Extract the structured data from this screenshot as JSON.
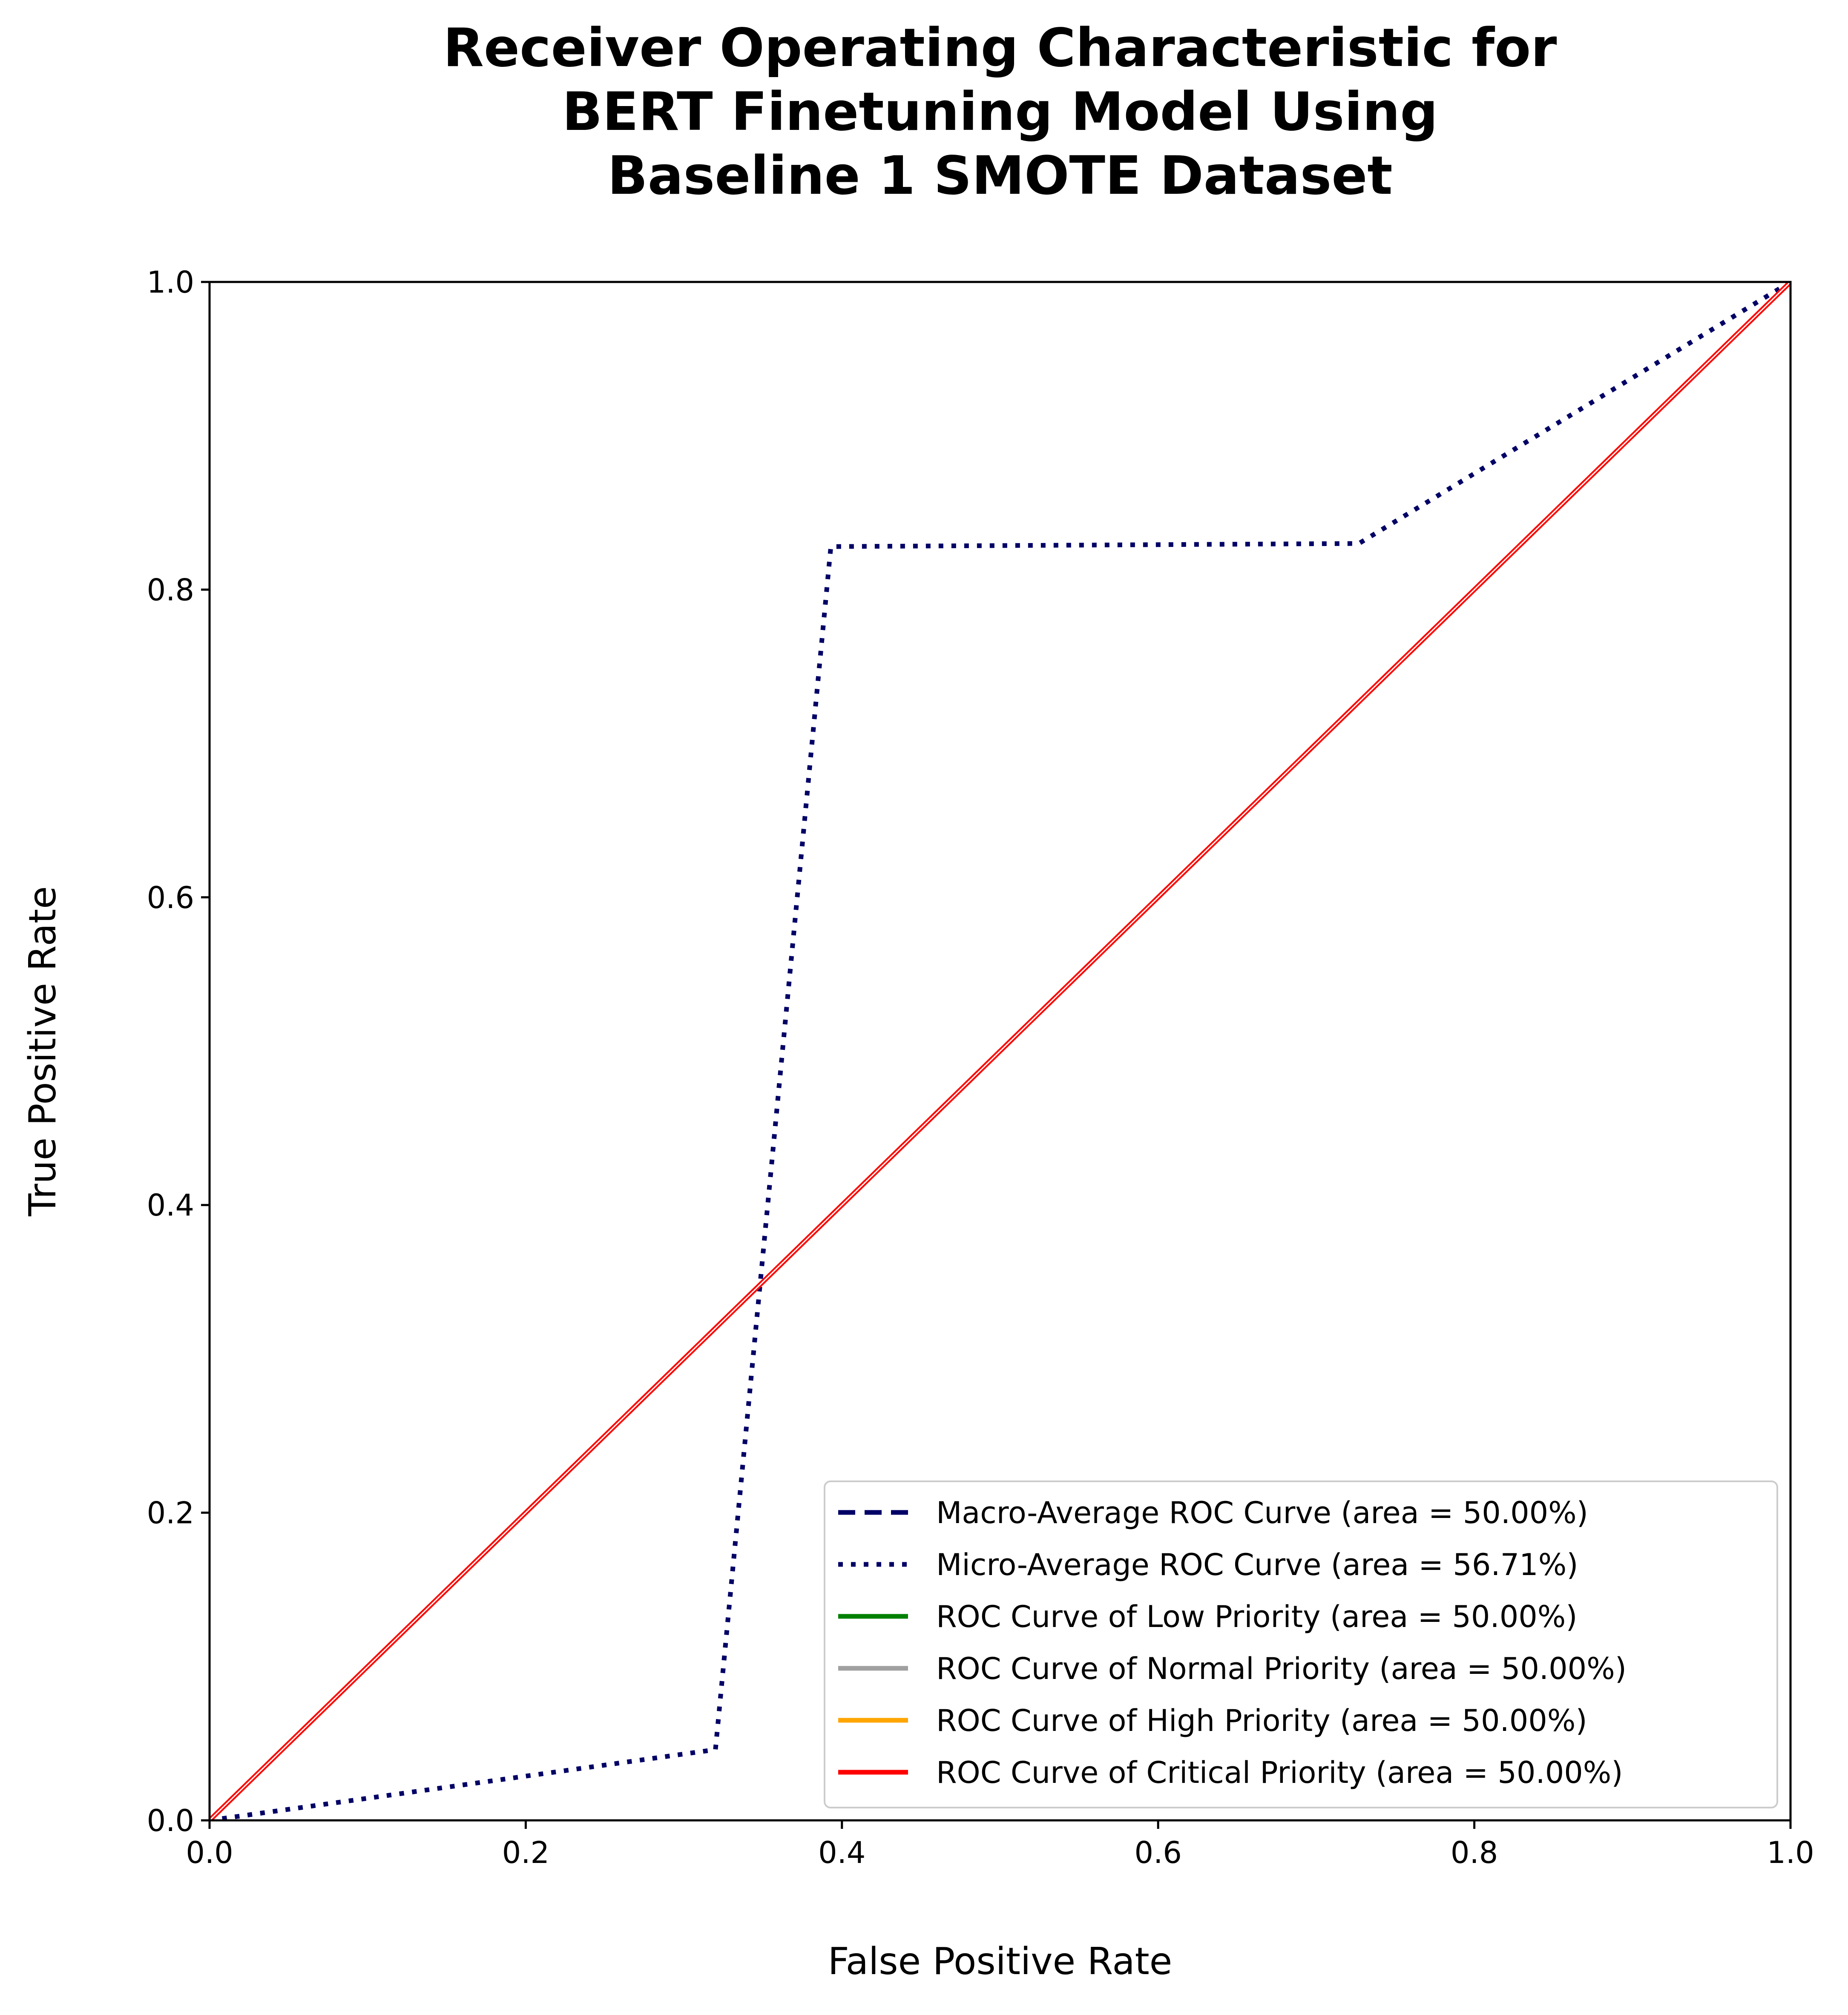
{
  "chart_data": {
    "type": "line",
    "title_lines": [
      "Receiver Operating Characteristic for",
      "BERT Finetuning Model Using",
      "Baseline 1 SMOTE Dataset"
    ],
    "xlabel": "False Positive Rate",
    "ylabel": "True Positive Rate",
    "xlim": [
      0,
      1
    ],
    "ylim": [
      0,
      1
    ],
    "xticks": [
      "0.0",
      "0.2",
      "0.4",
      "0.6",
      "0.8",
      "1.0"
    ],
    "yticks": [
      "0.0",
      "0.2",
      "0.4",
      "0.6",
      "0.8",
      "1.0"
    ],
    "grid": false,
    "legend_position": "lower-right",
    "series": [
      {
        "name": "Macro-Average ROC Curve (area = 50.00%)",
        "color": "#000066",
        "style": "dashed",
        "x": [
          0,
          1
        ],
        "y": [
          0,
          1
        ]
      },
      {
        "name": "Micro-Average ROC Curve (area = 56.71%)",
        "color": "#000066",
        "style": "dotted",
        "x": [
          0.0,
          0.32,
          0.393,
          0.727,
          1.0
        ],
        "y": [
          0.0,
          0.046,
          0.828,
          0.83,
          1.0
        ]
      },
      {
        "name": "ROC Curve of Low Priority (area = 50.00%)",
        "color": "#008000",
        "style": "solid",
        "x": [
          0,
          1
        ],
        "y": [
          0,
          1
        ]
      },
      {
        "name": "ROC Curve of Normal Priority (area = 50.00%)",
        "color": "#a0a0a0",
        "style": "solid",
        "x": [
          0,
          1
        ],
        "y": [
          0,
          1
        ]
      },
      {
        "name": "ROC Curve of High Priority (area = 50.00%)",
        "color": "#ffa500",
        "style": "solid",
        "x": [
          0,
          1
        ],
        "y": [
          0,
          1
        ]
      },
      {
        "name": "ROC Curve of Critical Priority (area = 50.00%)",
        "color": "#ff0000",
        "style": "solid",
        "x": [
          0,
          1
        ],
        "y": [
          0,
          1
        ]
      }
    ],
    "diagonal_reference": {
      "color": "#ffffff",
      "style": "solid",
      "x": [
        0,
        1
      ],
      "y": [
        0,
        1
      ]
    }
  }
}
